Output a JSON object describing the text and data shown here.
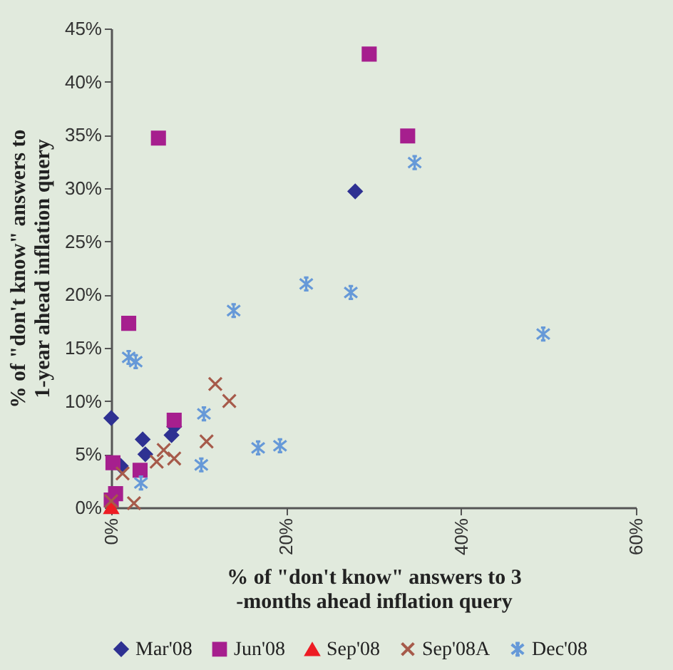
{
  "chart_data": {
    "type": "scatter",
    "xlabel": "% of \"don't know\" answers to 3 -months ahead inflation query",
    "ylabel": "% of \"don't know\" answers to 1-year ahead inflation query",
    "xlim": [
      0,
      60
    ],
    "xticks": [
      {
        "value": 0,
        "label": "0%"
      },
      {
        "value": 20,
        "label": "20%"
      },
      {
        "value": 40,
        "label": "40%"
      },
      {
        "value": 60,
        "label": "60%"
      }
    ],
    "ylim": [
      0,
      45
    ],
    "yticks": [
      {
        "value": 0,
        "label": "0%"
      },
      {
        "value": 5,
        "label": "5%"
      },
      {
        "value": 10,
        "label": "10%"
      },
      {
        "value": 15,
        "label": "15%"
      },
      {
        "value": 20,
        "label": "20%"
      },
      {
        "value": 25,
        "label": "25%"
      },
      {
        "value": 30,
        "label": "30%"
      },
      {
        "value": 35,
        "label": "35%"
      },
      {
        "value": 40,
        "label": "40%"
      },
      {
        "value": 45,
        "label": "45%"
      }
    ],
    "grid": false,
    "legend": "bottom",
    "series": [
      {
        "name": "Mar'08",
        "color": "#2e3192",
        "marker": "diamond",
        "x": [
          0,
          27.9,
          3.6,
          3.9,
          6.9,
          7.2,
          1.1
        ],
        "values": [
          8.4,
          29.7,
          6.4,
          5.0,
          6.8,
          7.6,
          3.9
        ]
      },
      {
        "name": "Jun'08",
        "color": "#a61f8e",
        "marker": "square",
        "x": [
          5.4,
          29.5,
          33.9,
          2.0,
          7.2,
          3.3,
          0.2,
          0.5,
          0
        ],
        "values": [
          34.7,
          42.6,
          34.9,
          17.3,
          8.2,
          3.5,
          4.2,
          1.3,
          0.7
        ]
      },
      {
        "name": "Sep'08",
        "color": "#ed1c24",
        "marker": "triangle",
        "x": [
          0
        ],
        "values": [
          0
        ]
      },
      {
        "name": "Sep'08A",
        "color": "#a65a4a",
        "marker": "cross",
        "x": [
          11.9,
          13.5,
          10.9,
          6.0,
          7.2,
          5.2,
          1.3,
          2.6,
          0
        ],
        "values": [
          11.6,
          10.0,
          6.2,
          5.4,
          4.6,
          4.3,
          3.2,
          0.4,
          0.6
        ]
      },
      {
        "name": "Dec'08",
        "color": "#6699d8",
        "marker": "cross",
        "x": [
          34.7,
          22.3,
          27.4,
          14.0,
          49.4,
          2.0,
          2.8,
          10.6,
          10.3,
          16.8,
          19.3,
          3.4
        ],
        "values": [
          32.4,
          21.0,
          20.2,
          18.5,
          16.3,
          14.1,
          13.7,
          8.8,
          4.0,
          5.6,
          5.8,
          2.3
        ]
      }
    ]
  }
}
